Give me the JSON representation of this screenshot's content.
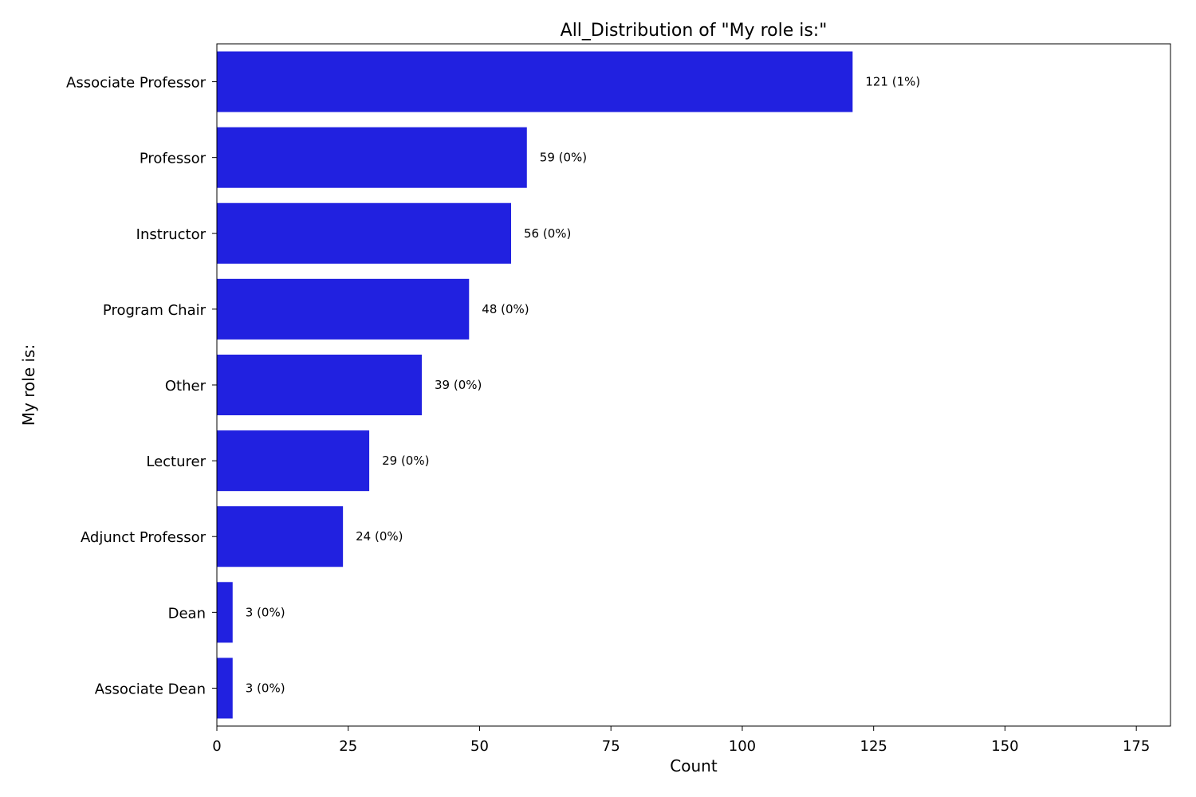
{
  "chart_data": {
    "type": "bar",
    "orientation": "horizontal",
    "title": "All_Distribution of \"My role is:\"",
    "xlabel": "Count",
    "ylabel": "My role is:",
    "categories": [
      "Associate Professor",
      "Professor",
      "Instructor",
      "Program Chair",
      "Other",
      "Lecturer",
      "Adjunct Professor",
      "Dean",
      "Associate Dean"
    ],
    "values": [
      121,
      59,
      56,
      48,
      39,
      29,
      24,
      3,
      3
    ],
    "value_labels": [
      "121 (1%)",
      "59 (0%)",
      "56 (0%)",
      "48 (0%)",
      "39 (0%)",
      "29 (0%)",
      "24 (0%)",
      "3 (0%)",
      "3 (0%)"
    ],
    "xlim": [
      0,
      181.5
    ],
    "xticks": [
      0,
      25,
      50,
      75,
      100,
      125,
      150,
      175
    ],
    "xtick_labels": [
      "0",
      "25",
      "50",
      "75",
      "100",
      "125",
      "150",
      "175"
    ],
    "bar_color": "#2121e0",
    "grid": false,
    "legend": "none"
  }
}
